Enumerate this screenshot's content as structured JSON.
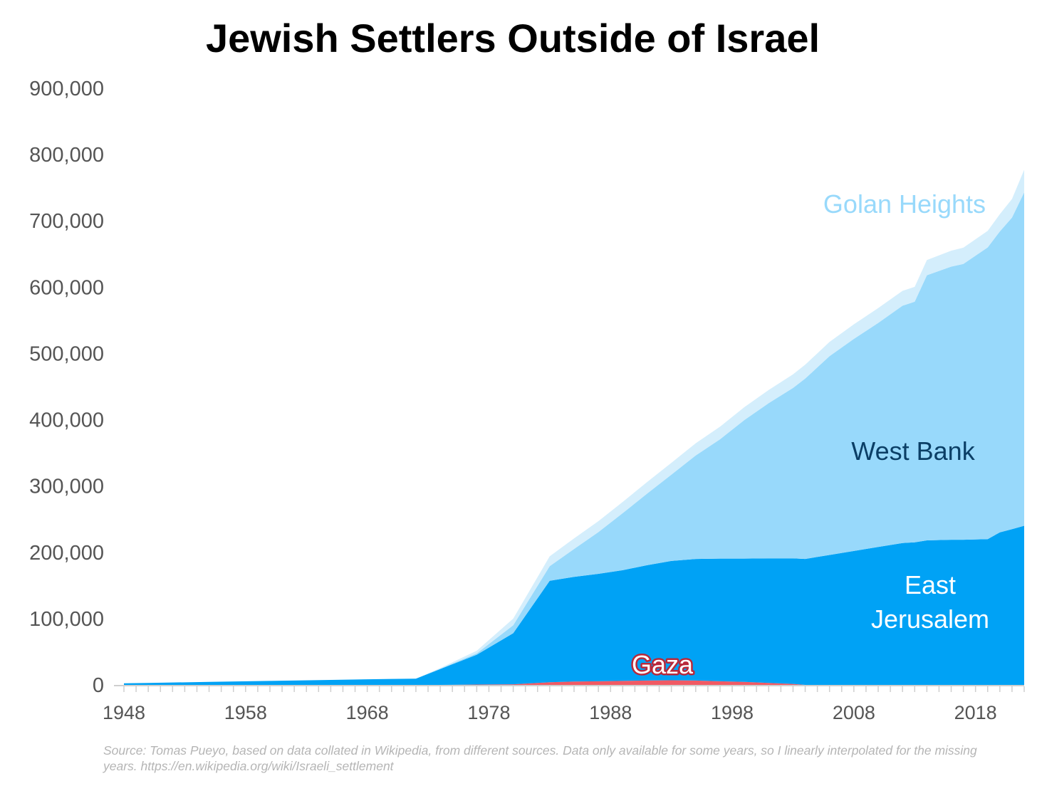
{
  "chart_data": {
    "type": "area",
    "stacked": true,
    "title": "Jewish Settlers Outside of Israel",
    "xlabel": "",
    "ylabel": "",
    "ylim": [
      0,
      900000
    ],
    "xlim": [
      1948,
      2022
    ],
    "y_ticks": [
      "0",
      "100,000",
      "200,000",
      "300,000",
      "400,000",
      "500,000",
      "600,000",
      "700,000",
      "800,000",
      "900,000"
    ],
    "x_ticks": [
      "1948",
      "1958",
      "1968",
      "1978",
      "1988",
      "1998",
      "2008",
      "2018"
    ],
    "grid": false,
    "legend": "labels inside areas",
    "x": [
      1948,
      1950,
      1955,
      1960,
      1965,
      1970,
      1972,
      1974,
      1977,
      1980,
      1983,
      1985,
      1987,
      1989,
      1991,
      1993,
      1995,
      1997,
      1999,
      2001,
      2003,
      2004,
      2006,
      2008,
      2010,
      2012,
      2013,
      2014,
      2016,
      2017,
      2019,
      2020,
      2021,
      2022
    ],
    "series": [
      {
        "name": "Gaza",
        "color": "#f05a64",
        "values": [
          0,
          0,
          0,
          0,
          0,
          0,
          0,
          0,
          500,
          1000,
          4000,
          5000,
          5500,
          6000,
          6500,
          7000,
          6500,
          5500,
          4500,
          3000,
          1500,
          0,
          0,
          0,
          0,
          0,
          0,
          0,
          0,
          0,
          0,
          0,
          0,
          0
        ]
      },
      {
        "name": "East Jerusalem",
        "color": "#00a2f5",
        "values": [
          2500,
          3000,
          4500,
          6000,
          7500,
          9000,
          9500,
          24000,
          45000,
          77000,
          153000,
          158000,
          162000,
          167000,
          174000,
          180000,
          183500,
          185000,
          186000,
          188000,
          189500,
          190000,
          196000,
          202000,
          208000,
          214000,
          215000,
          218000,
          219000,
          219000,
          220000,
          230000,
          235000,
          240000
        ]
      },
      {
        "name": "West Bank",
        "color": "#98d9fb",
        "values": [
          0,
          0,
          0,
          0,
          0,
          0,
          0,
          500,
          2000,
          12000,
          22000,
          42000,
          63000,
          86000,
          108000,
          130000,
          156000,
          180000,
          209000,
          234000,
          257000,
          272000,
          300000,
          320000,
          338000,
          358000,
          363000,
          400000,
          412000,
          416000,
          440000,
          454000,
          470000,
          503000
        ]
      },
      {
        "name": "Golan Heights",
        "color": "#d4eefc",
        "values": [
          0,
          0,
          0,
          0,
          0,
          0,
          0,
          1000,
          4000,
          10000,
          15000,
          16000,
          16500,
          17000,
          17500,
          18000,
          18500,
          19000,
          19500,
          20000,
          20500,
          21000,
          21500,
          22000,
          22500,
          22500,
          22500,
          23000,
          24000,
          24500,
          25000,
          26000,
          28000,
          34000
        ]
      }
    ],
    "area_labels": {
      "golan": "Golan Heights",
      "west_bank": "West Bank",
      "east_jerusalem_line1": "East",
      "east_jerusalem_line2": "Jerusalem",
      "gaza": "Gaza"
    },
    "label_colors": {
      "golan": "#98d9fb",
      "west_bank": "#0b3f66",
      "east_jerusalem": "#ffffff",
      "gaza": "#ffffff",
      "gaza_outline": "#b8283a"
    }
  },
  "source_note": "Source: Tomas Pueyo, based on data collated in Wikipedia, from different sources. Data only available for some years, so I linearly interpolated for the missing years. https://en.wikipedia.org/wiki/Israeli_settlement"
}
